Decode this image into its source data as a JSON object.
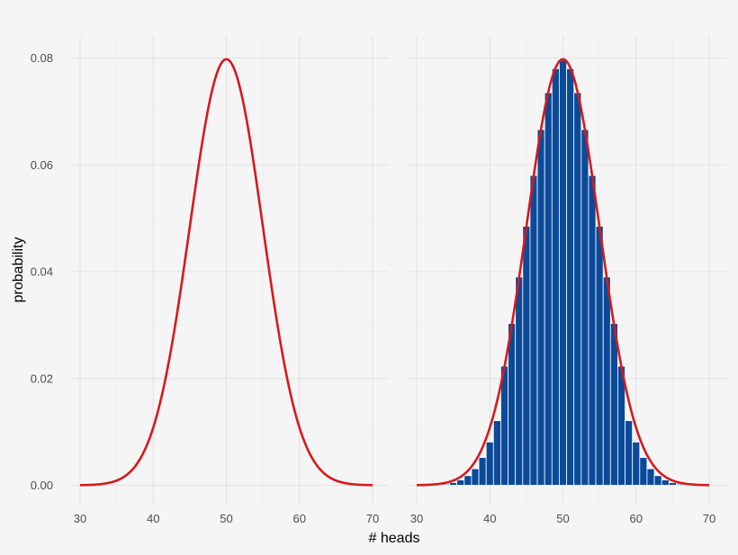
{
  "chart_data": [
    {
      "type": "line",
      "title": "",
      "xlabel": "# heads",
      "ylabel": "probability",
      "xlim": [
        30,
        70
      ],
      "ylim": [
        0,
        0.08
      ],
      "xticks": [
        "30",
        "40",
        "50",
        "60",
        "70"
      ],
      "yticks": [
        "0.00",
        "0.02",
        "0.04",
        "0.06",
        "0.08"
      ],
      "grid": true,
      "series": [
        {
          "kind": "normal-density-curve",
          "mean": 50,
          "sd": 5,
          "x_range": [
            30,
            70
          ],
          "color": "#d7191c"
        }
      ]
    },
    {
      "type": "bar",
      "title": "",
      "xlabel": "# heads",
      "ylabel": "probability",
      "xlim": [
        30,
        70
      ],
      "ylim": [
        0,
        0.08
      ],
      "xticks": [
        "30",
        "40",
        "50",
        "60",
        "70"
      ],
      "grid": true,
      "categories": [
        33,
        34,
        35,
        36,
        37,
        38,
        39,
        40,
        41,
        42,
        43,
        44,
        45,
        46,
        47,
        48,
        49,
        50,
        51,
        52,
        53,
        54,
        55,
        56,
        57,
        58,
        59,
        60,
        61,
        62,
        63,
        64,
        65,
        66,
        67
      ],
      "values": [
        0.0001,
        0.0002,
        0.0005,
        0.001,
        0.0018,
        0.0031,
        0.0052,
        0.0081,
        0.0121,
        0.0223,
        0.0303,
        0.039,
        0.0485,
        0.058,
        0.0666,
        0.0735,
        0.078,
        0.0796,
        0.078,
        0.0735,
        0.0666,
        0.058,
        0.0485,
        0.039,
        0.0303,
        0.0223,
        0.0121,
        0.0081,
        0.0052,
        0.0031,
        0.0018,
        0.001,
        0.0005,
        0.0002,
        0.0001
      ],
      "bar_color": "#0b4a99",
      "overlay": {
        "kind": "normal-density-curve",
        "mean": 50,
        "sd": 5,
        "x_range": [
          30,
          70
        ],
        "color": "#d7191c"
      }
    }
  ]
}
